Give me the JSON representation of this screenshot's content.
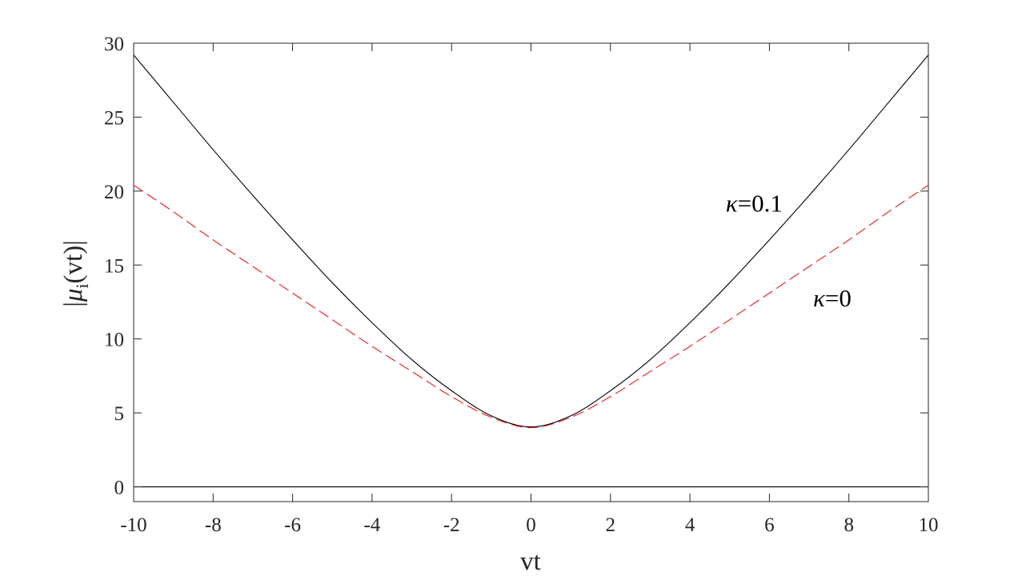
{
  "chart_data": {
    "type": "line",
    "title": "",
    "xlabel": "vt",
    "ylabel": {
      "prefix": "|",
      "greek": "μ",
      "subscript": "i",
      "suffix": "(vt)|"
    },
    "xlim": [
      -10,
      10
    ],
    "ylim": [
      -1,
      30
    ],
    "xticks": [
      -10,
      -8,
      -6,
      -4,
      -2,
      0,
      2,
      4,
      6,
      8,
      10
    ],
    "yticks": [
      0,
      5,
      10,
      15,
      20,
      25,
      30
    ],
    "grid": false,
    "legend": "none",
    "x": [
      -10,
      -9,
      -8,
      -7,
      -6,
      -5,
      -4,
      -3,
      -2,
      -1,
      0,
      1,
      2,
      3,
      4,
      5,
      6,
      7,
      8,
      9,
      10
    ],
    "series": [
      {
        "style": "solid",
        "color": "#000000",
        "values": [
          29.2,
          26.0,
          22.8,
          19.7,
          16.7,
          13.8,
          11.1,
          8.6,
          6.5,
          4.8,
          4.05,
          4.8,
          6.5,
          8.6,
          11.1,
          13.8,
          16.7,
          19.7,
          22.8,
          26.0,
          29.2
        ]
      },
      {
        "style": "dashed",
        "color": "#e41a1c",
        "values": [
          20.4,
          18.6,
          16.7,
          14.9,
          13.1,
          11.3,
          9.5,
          7.8,
          6.1,
          4.7,
          4.0,
          4.7,
          6.1,
          7.8,
          9.5,
          11.3,
          13.1,
          14.9,
          16.7,
          18.6,
          20.4
        ]
      },
      {
        "style": "solid",
        "color": "#000000",
        "values": [
          0,
          0,
          0,
          0,
          0,
          0,
          0,
          0,
          0,
          0,
          0,
          0,
          0,
          0,
          0,
          0,
          0,
          0,
          0,
          0,
          0
        ]
      }
    ],
    "annotations": [
      {
        "greek": "κ",
        "text": "=0.1",
        "x": 4.9,
        "y": 18.6
      },
      {
        "greek": "κ",
        "text": "=0",
        "x": 7.1,
        "y": 12.2
      }
    ]
  }
}
